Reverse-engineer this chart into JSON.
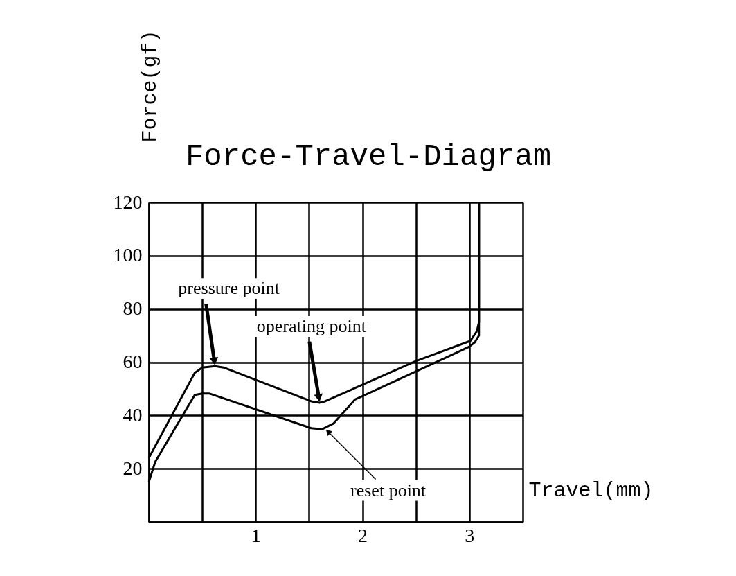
{
  "chart_data": {
    "type": "line",
    "title": "Force-Travel-Diagram",
    "xlabel": "Travel(mm)",
    "ylabel": "Force(gf)",
    "xlim": [
      0,
      3.5
    ],
    "ylim": [
      0,
      120
    ],
    "xticks": [
      {
        "value": 0,
        "label": null
      },
      {
        "value": 0.5,
        "label": null
      },
      1,
      {
        "value": 1.5,
        "label": null
      },
      2,
      {
        "value": 2.5,
        "label": null
      },
      3,
      {
        "value": 3.5,
        "label": null
      }
    ],
    "yticks": [
      {
        "value": 0,
        "label": null
      },
      20,
      40,
      60,
      80,
      100,
      120
    ],
    "grid": true,
    "marker": "none",
    "line_style": "solid",
    "series": [
      {
        "color": "#000000",
        "x": [
          0,
          0.43,
          0.5,
          0.62,
          0.7,
          1.52,
          1.6,
          1.65,
          2.5,
          3.01,
          3.07,
          3.09,
          3.09
        ],
        "values": [
          24,
          56,
          58,
          58.5,
          58,
          45.3,
          44.8,
          45.3,
          60.4,
          68,
          71.6,
          75,
          120
        ]
      },
      {
        "color": "#000000",
        "x": [
          0,
          0.06,
          0.43,
          0.5,
          0.57,
          1.52,
          1.57,
          1.63,
          1.73,
          1.93,
          1.98,
          2.99,
          3.05,
          3.09,
          3.09
        ],
        "values": [
          15,
          22.6,
          47.7,
          48.2,
          48.2,
          35.2,
          35,
          35,
          37,
          46,
          46.9,
          65.6,
          67.4,
          70,
          120
        ]
      }
    ],
    "annotations": [
      {
        "text": "pressure point",
        "x": 0.62,
        "y": 58.5
      },
      {
        "text": "operating point",
        "x": 1.6,
        "y": 44.8
      },
      {
        "text": "reset point",
        "x": 1.65,
        "y": 35
      }
    ]
  }
}
